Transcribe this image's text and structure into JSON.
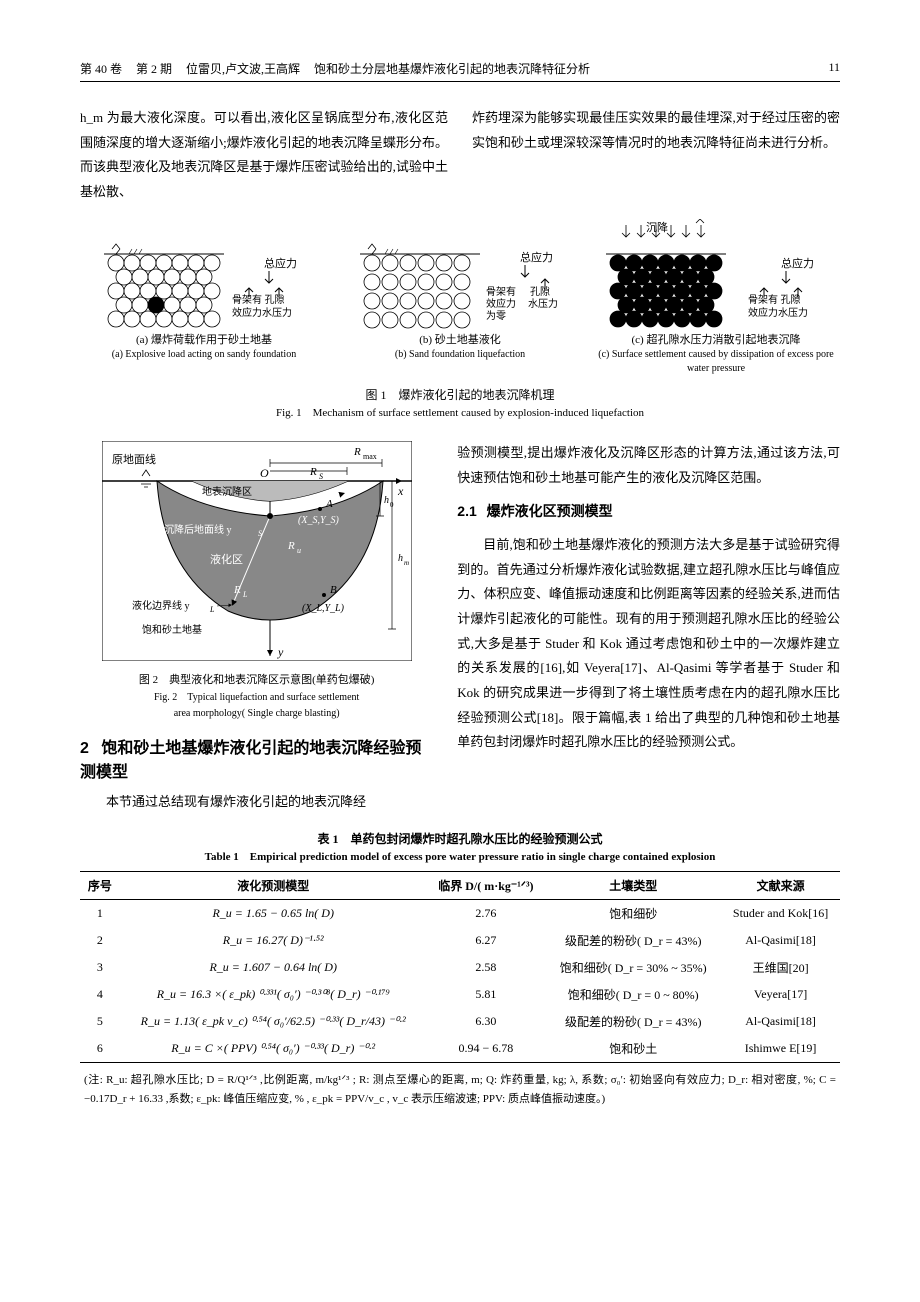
{
  "header": {
    "vol": "第 40 卷",
    "issue": "第 2 期",
    "authors": "位雷贝,卢文波,王高辉",
    "title_part": "饱和砂土分层地基爆炸液化引起的地表沉降特征分析",
    "page": "11"
  },
  "intro_col1": "h_m 为最大液化深度。可以看出,液化区呈锅底型分布,液化区范围随深度的增大逐渐缩小;爆炸液化引起的地表沉降呈蝶形分布。而该典型液化及地表沉降区是基于爆炸压密试验给出的,试验中土基松散、",
  "intro_col2": "炸药埋深为能够实现最佳压实效果的最佳埋深,对于经过压密的密实饱和砂土或埋深较深等情况时的地表沉降特征尚未进行分析。",
  "fig1": {
    "panels": [
      {
        "labels": {
          "l1": "总应力",
          "l2": "骨架有 孔隙",
          "l3": "效应力水压力"
        },
        "cap_cn": "(a) 爆炸荷载作用于砂土地基",
        "cap_en": "(a) Explosive load acting on sandy foundation"
      },
      {
        "labels": {
          "l1": "总应力",
          "l2": "骨架有 孔隙",
          "l3": "效应力 水压力",
          "l4": "为零"
        },
        "cap_cn": "(b) 砂土地基液化",
        "cap_en": "(b) Sand foundation liquefaction"
      },
      {
        "labels": {
          "l0": "沉降",
          "l1": "总应力",
          "l2": "骨架有 孔隙",
          "l3": "效应力水压力"
        },
        "cap_cn": "(c) 超孔隙水压力消散引起地表沉降",
        "cap_en": "(c) Surface settlement caused by dissipation of excess pore water pressure"
      }
    ],
    "caption_cn": "图 1　爆炸液化引起的地表沉降机理",
    "caption_en": "Fig. 1　Mechanism of surface settlement caused by explosion-induced liquefaction"
  },
  "fig2": {
    "labels": {
      "a": "原地面线",
      "b": "地表沉降区",
      "c": "沉降后地面线 y_S",
      "d": "液化区",
      "e": "液化边界线 y_L",
      "f": "饱和砂土地基",
      "rmax": "R_max",
      "rs": "R_S",
      "ru": "R_u",
      "rl": "R_L",
      "o": "O",
      "x": "x",
      "y": "y",
      "a_pt": "A",
      "xs": "(X_S,Y_S)",
      "xl": "(X_L,Y_L)",
      "hm": "h_m",
      "ho": "h_0"
    },
    "caption_cn": "图 2　典型液化和地表沉降区示意图(单药包爆破)",
    "caption_en1": "Fig. 2　Typical liquefaction and surface settlement",
    "caption_en2": "area morphology( Single charge blasting)"
  },
  "section2": {
    "num": "2",
    "title": "饱和砂土地基爆炸液化引起的地表沉降经验预测模型",
    "para": "本节通过总结现有爆炸液化引起的地表沉降经"
  },
  "col_right": {
    "p1": "验预测模型,提出爆炸液化及沉降区形态的计算方法,通过该方法,可快速预估饱和砂土地基可能产生的液化及沉降区范围。",
    "sub_num": "2.1",
    "sub_title": "爆炸液化区预测模型",
    "p2": "目前,饱和砂土地基爆炸液化的预测方法大多是基于试验研究得到的。首先通过分析爆炸液化试验数据,建立超孔隙水压比与峰值应力、体积应变、峰值振动速度和比例距离等因素的经验关系,进而估计爆炸引起液化的可能性。现有的用于预测超孔隙水压比的经验公式,大多是基于 Studer 和 Kok 通过考虑饱和砂土中的一次爆炸建立的关系发展的[16],如 Veyera[17]、Al-Qasimi 等学者基于 Studer 和 Kok 的研究成果进一步得到了将土壤性质考虑在内的超孔隙水压比经验预测公式[18]。限于篇幅,表 1 给出了典型的几种饱和砂土地基单药包封闭爆炸时超孔隙水压比的经验预测公式。"
  },
  "table1": {
    "caption_cn": "表 1　单药包封闭爆炸时超孔隙水压比的经验预测公式",
    "caption_en": "Table 1　Empirical prediction model of excess pore water pressure ratio in single charge contained explosion",
    "headers": [
      "序号",
      "液化预测模型",
      "临界 D/( m·kg⁻¹ᐟ³)",
      "土壤类型",
      "文献来源"
    ],
    "rows": [
      [
        "1",
        "R_u = 1.65 − 0.65 ln( D)",
        "2.76",
        "饱和细砂",
        "Studer and Kok[16]"
      ],
      [
        "2",
        "R_u = 16.27( D)⁻¹·⁵²",
        "6.27",
        "级配差的粉砂( D_r = 43%)",
        "Al-Qasimi[18]"
      ],
      [
        "3",
        "R_u = 1.607 − 0.64 ln( D)",
        "2.58",
        "饱和细砂( D_r = 30% ~ 35%)",
        "王维国[20]"
      ],
      [
        "4",
        "R_u = 16.3 ×( ε_pk) ⁰·³³¹( σ₀′) ⁻⁰·³⁰⁸( D_r) ⁻⁰·¹⁷⁹",
        "5.81",
        "饱和细砂( D_r = 0 ~ 80%)",
        "Veyera[17]"
      ],
      [
        "5",
        "R_u = 1.13( ε_pk v_c) ⁰·⁵⁴( σ₀′/62.5) ⁻⁰·³³( D_r/43) ⁻⁰·²",
        "6.30",
        "级配差的粉砂( D_r = 43%)",
        "Al-Qasimi[18]"
      ],
      [
        "6",
        "R_u = C ×( PPV) ⁰·⁵⁴( σ₀′) ⁻⁰·³³( D_r) ⁻⁰·²",
        "0.94 − 6.78",
        "饱和砂土",
        "Ishimwe E[19]"
      ]
    ],
    "note": "(注: R_u: 超孔隙水压比; D = R/Q¹ᐟ³ ,比例距离, m/kg¹ᐟ³ ; R: 测点至爆心的距离, m; Q: 炸药重量, kg; λ, 系数; σ₀′: 初始竖向有效应力; D_r: 相对密度, %; C = −0.17D_r + 16.33 ,系数; ε_pk: 峰值压缩应变, % , ε_pk = PPV/v_c , v_c 表示压缩波速; PPV: 质点峰值振动速度。)"
  }
}
